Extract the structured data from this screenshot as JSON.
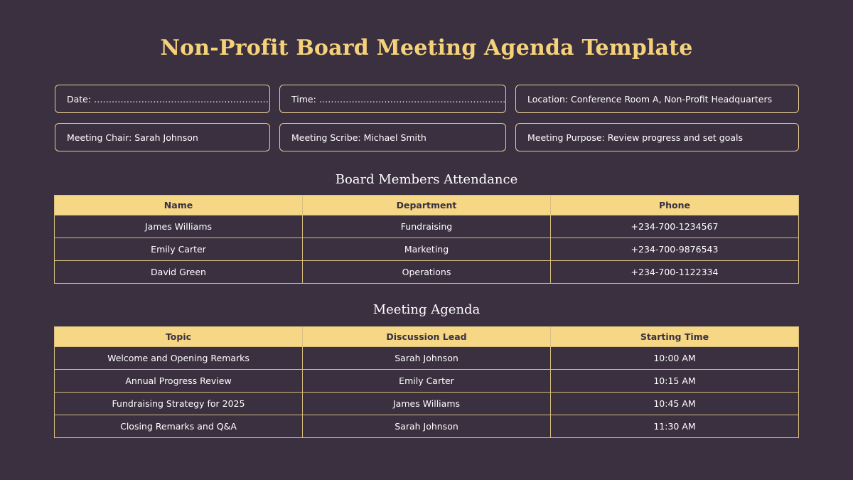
{
  "title": "Non-Profit Board Meeting Agenda Template",
  "info": {
    "date": "Date: ……………………………………………………….",
    "time": "Time: ………………………………………………………….",
    "location": "Location: Conference Room A, Non-Profit Headquarters",
    "chair": "Meeting Chair: Sarah Johnson",
    "scribe": "Meeting Scribe: Michael Smith",
    "purpose": "Meeting Purpose: Review progress and set goals"
  },
  "attendance": {
    "heading": "Board Members Attendance",
    "headers": [
      "Name",
      "Department",
      "Phone"
    ],
    "rows": [
      [
        "James Williams",
        "Fundraising",
        "+234-700-1234567"
      ],
      [
        "Emily Carter",
        "Marketing",
        "+234-700-9876543"
      ],
      [
        "David Green",
        "Operations",
        "+234-700-1122334"
      ]
    ]
  },
  "agenda": {
    "heading": "Meeting Agenda",
    "headers": [
      "Topic",
      "Discussion Lead",
      "Starting Time"
    ],
    "rows": [
      [
        "Welcome and Opening Remarks",
        "Sarah Johnson",
        "10:00 AM"
      ],
      [
        "Annual Progress Review",
        "Emily Carter",
        "10:15 AM"
      ],
      [
        "Fundraising Strategy for 2025",
        "James Williams",
        "10:45 AM"
      ],
      [
        "Closing Remarks and Q&A",
        "Sarah Johnson",
        "11:30 AM"
      ]
    ]
  },
  "colors": {
    "background": "#3a3040",
    "accent": "#f5d27a",
    "header_fill": "#f5d786",
    "border": "#d8bf80"
  }
}
